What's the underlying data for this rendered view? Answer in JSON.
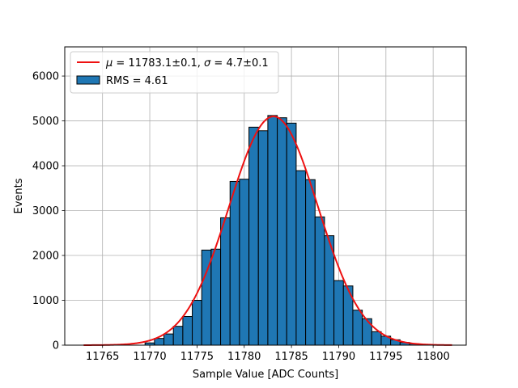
{
  "chart_data": {
    "type": "bar",
    "xlabel": "Sample Value [ADC Counts]",
    "ylabel": "Events",
    "xlim": [
      11761.0,
      11803.5
    ],
    "ylim": [
      0,
      6650
    ],
    "xticks": [
      11765,
      11770,
      11775,
      11780,
      11785,
      11790,
      11795,
      11800
    ],
    "yticks": [
      0,
      1000,
      2000,
      3000,
      4000,
      5000,
      6000
    ],
    "grid": true,
    "legend_position": "top-left",
    "bin_width": 1,
    "colors": {
      "bars": "#1f77b4",
      "bar_edge": "#000000",
      "fit": "#ee1111",
      "grid": "#b0b0b0"
    },
    "series": [
      {
        "name": "RMS = 4.61",
        "kind": "histogram",
        "bins": [
          11769.5,
          11770.5,
          11771.5,
          11772.5,
          11773.5,
          11774.5,
          11775.5,
          11776.5,
          11777.5,
          11778.5,
          11779.5,
          11780.5,
          11781.5,
          11782.5,
          11783.5,
          11784.5,
          11785.5,
          11786.5,
          11787.5,
          11788.5,
          11789.5,
          11790.5,
          11791.5,
          11792.5,
          11793.5,
          11794.5,
          11795.5,
          11796.5,
          11797.5,
          11798.5
        ],
        "values": [
          50,
          150,
          250,
          420,
          640,
          1000,
          2120,
          2140,
          2840,
          3650,
          3700,
          4860,
          4780,
          5120,
          5070,
          4950,
          3890,
          3690,
          2860,
          2440,
          1440,
          1320,
          780,
          590,
          300,
          200,
          120,
          60,
          30,
          10
        ]
      },
      {
        "name": "μ = 11783.1±0.1, σ = 4.7±0.1",
        "kind": "gaussian-fit",
        "mu": 11783.1,
        "sigma": 4.7,
        "amplitude": 5100,
        "x_range": [
          11763,
          11802
        ]
      }
    ]
  },
  "legend": {
    "fit_mu_symbol": "μ",
    "fit_mu_text": " = 11783.1±0.1, ",
    "fit_sigma_symbol": "σ",
    "fit_sigma_text": " = 4.7±0.1",
    "hist_label": "RMS = 4.61"
  }
}
